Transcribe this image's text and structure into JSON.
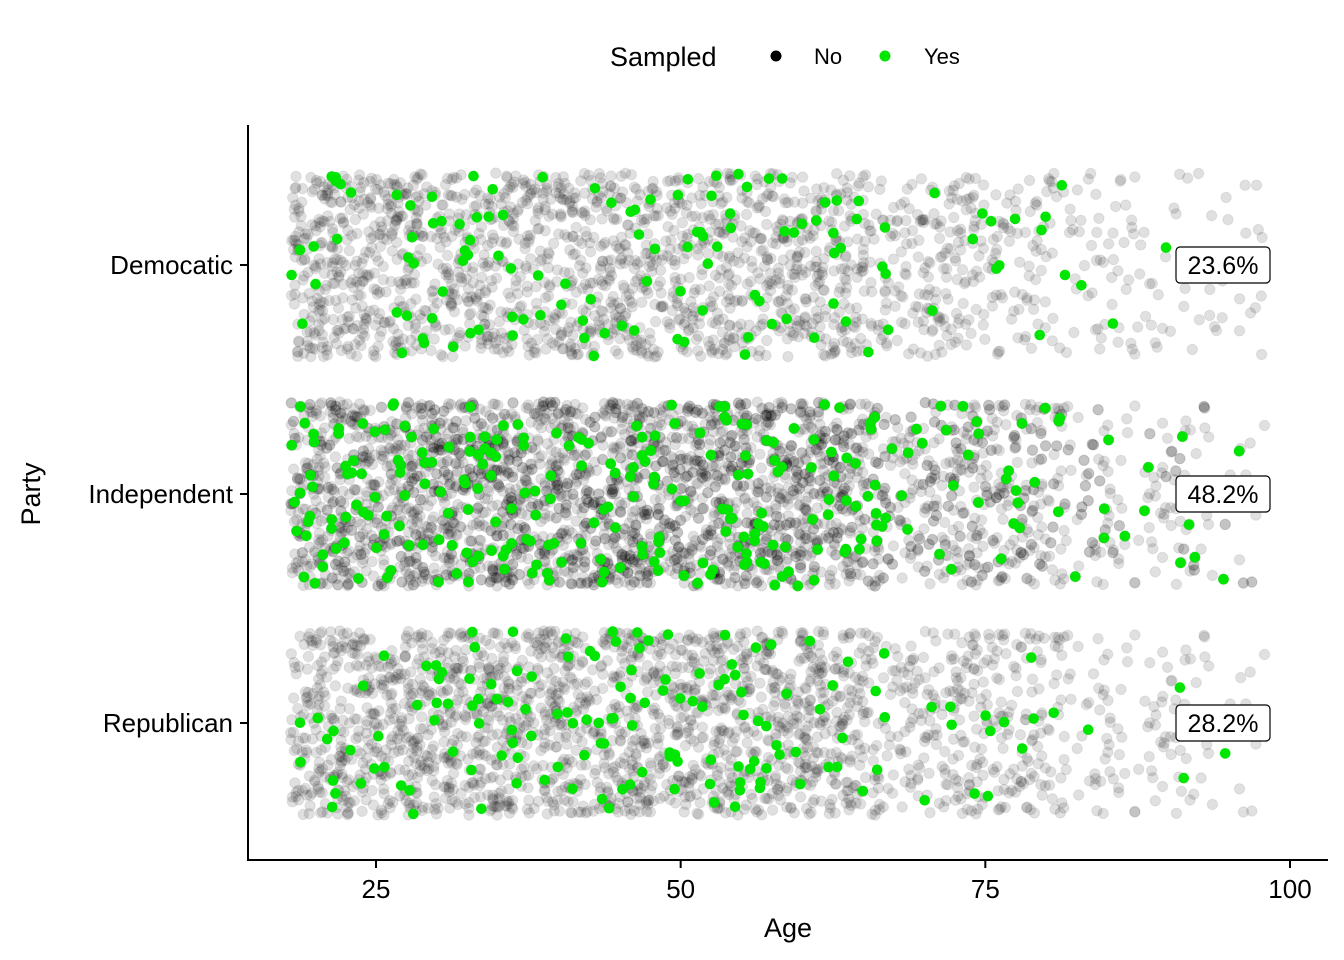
{
  "chart_data": {
    "type": "scatter",
    "subtype": "jittered strip",
    "xlabel": "Age",
    "ylabel": "Party",
    "xlim": [
      14,
      101
    ],
    "x_ticks": [
      25,
      50,
      75,
      100
    ],
    "categories": [
      "Democatic",
      "Independent",
      "Republican"
    ],
    "legend": {
      "title": "Sampled",
      "position": "top",
      "entries": [
        {
          "label": "No",
          "color": "#000000"
        },
        {
          "label": "Yes",
          "color": "#00e600"
        }
      ]
    },
    "grid": false,
    "age_range": [
      18,
      98
    ],
    "annotations": [
      {
        "category": "Democatic",
        "x": 94.5,
        "label": "23.6%"
      },
      {
        "category": "Independent",
        "x": 94.5,
        "label": "48.2%"
      },
      {
        "category": "Republican",
        "x": 94.5,
        "label": "28.2%"
      }
    ],
    "series": [
      {
        "name": "No",
        "color": "#000000",
        "counts": {
          "Democatic": 1900,
          "Independent": 3800,
          "Republican": 2200
        }
      },
      {
        "name": "Yes",
        "color": "#00e600",
        "counts": {
          "Democatic": 125,
          "Independent": 265,
          "Republican": 150
        }
      }
    ]
  }
}
